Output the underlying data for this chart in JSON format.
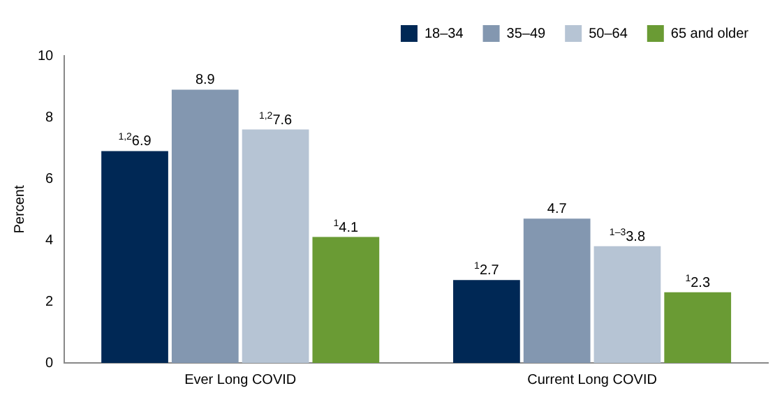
{
  "chart_data": {
    "type": "bar",
    "ylabel": "Percent",
    "categories": [
      "Ever Long COVID",
      "Current Long COVID"
    ],
    "series": [
      {
        "name": "18–34",
        "color": "#002855",
        "values": [
          6.9,
          2.7
        ],
        "value_labels": [
          "$^{1,2}$6.9",
          "$^{1}$2.7"
        ]
      },
      {
        "name": "35–49",
        "color": "#8397b0",
        "values": [
          8.9,
          4.7
        ],
        "value_labels": [
          "8.9",
          "4.7"
        ]
      },
      {
        "name": "50–64",
        "color": "#b6c4d4",
        "values": [
          7.6,
          3.8
        ],
        "value_labels": [
          "$^{1,2}$7.6",
          "$^{1–3}$3.8"
        ]
      },
      {
        "name": "65 and older",
        "color": "#6a9b34",
        "values": [
          4.1,
          2.3
        ],
        "value_labels": [
          "$^{1}$4.1",
          "$^{1}$2.3"
        ]
      }
    ],
    "ylim": [
      0,
      10
    ],
    "yticks": [
      0,
      2,
      4,
      6,
      8,
      10
    ],
    "grid": false,
    "legend": "top right"
  }
}
